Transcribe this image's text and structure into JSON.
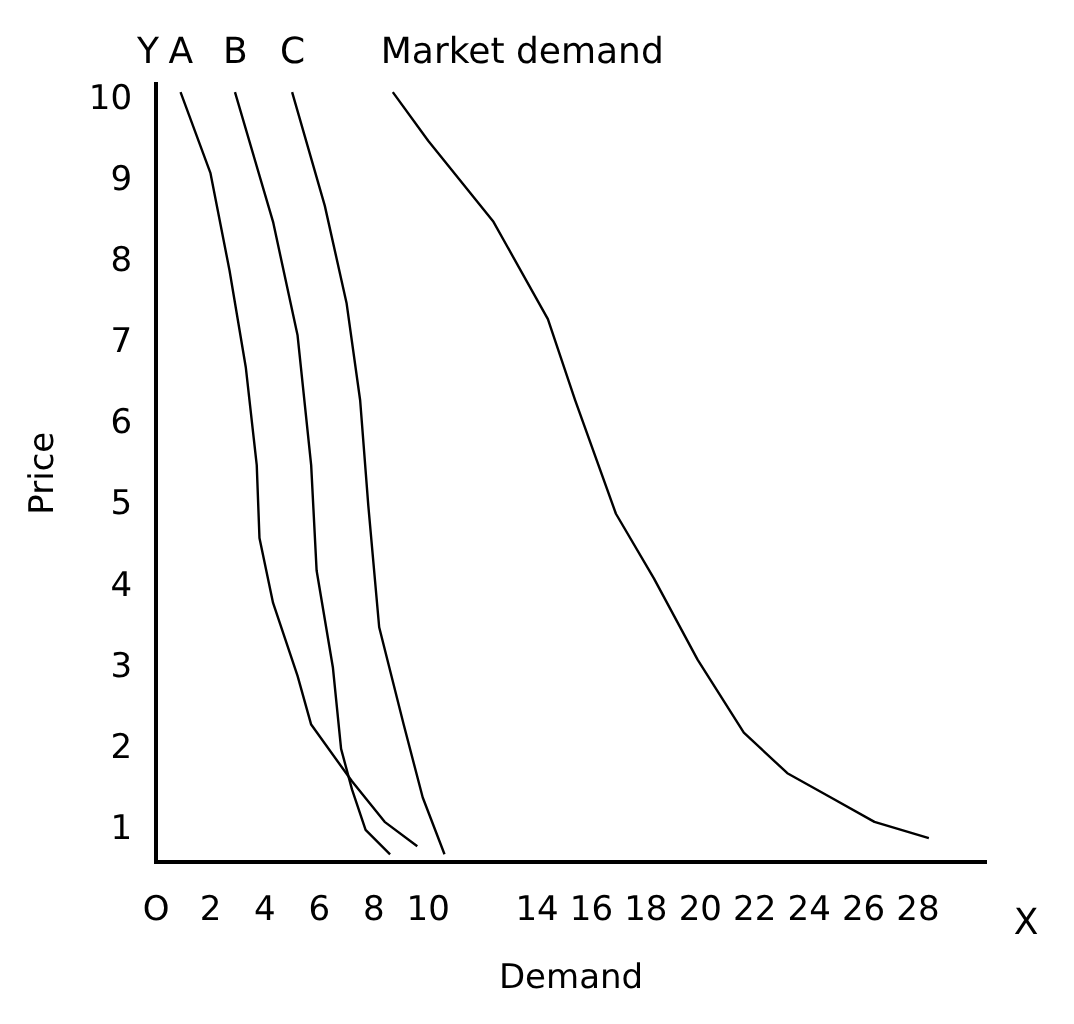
{
  "chart_data": {
    "type": "line",
    "xlabel": "Demand",
    "ylabel": "Price",
    "annotations": [
      "Y",
      "X"
    ],
    "xlim": [
      0,
      30.5
    ],
    "ylim": [
      0.6,
      10.2
    ],
    "xticks": [
      {
        "value": 0,
        "label": "O"
      },
      2,
      4,
      6,
      8,
      10,
      14,
      16,
      18,
      20,
      22,
      24,
      26,
      28
    ],
    "yticks": [
      1,
      2,
      3,
      4,
      5,
      6,
      7,
      8,
      9,
      10
    ],
    "grid": false,
    "legend": false,
    "marker": "none",
    "line_style": "solid",
    "series": [
      {
        "name": "A",
        "color": "#000000",
        "x": [
          0.9,
          2.0,
          2.7,
          3.3,
          3.7,
          3.8,
          4.3,
          5.2,
          5.7,
          7.2,
          8.4,
          9.6
        ],
        "values": [
          10.1,
          9.1,
          7.9,
          6.7,
          5.5,
          4.6,
          3.8,
          2.9,
          2.3,
          1.6,
          1.1,
          0.8
        ]
      },
      {
        "name": "B",
        "color": "#000000",
        "x": [
          2.9,
          4.3,
          5.2,
          5.7,
          5.9,
          6.5,
          6.8,
          7.2,
          7.7,
          8.6
        ],
        "values": [
          10.1,
          8.5,
          7.1,
          5.5,
          4.2,
          3.0,
          2.0,
          1.5,
          1.0,
          0.7
        ]
      },
      {
        "name": "C",
        "color": "#000000",
        "x": [
          5.0,
          6.2,
          7.0,
          7.5,
          7.8,
          8.2,
          9.1,
          9.8,
          10.6
        ],
        "values": [
          10.1,
          8.7,
          7.5,
          6.3,
          5.0,
          3.5,
          2.3,
          1.4,
          0.7
        ]
      },
      {
        "name": "Market demand",
        "color": "#000000",
        "x": [
          8.7,
          10.0,
          12.4,
          14.4,
          15.4,
          16.9,
          18.3,
          19.9,
          21.6,
          23.2,
          24.8,
          26.4,
          28.4
        ],
        "values": [
          10.1,
          9.5,
          8.5,
          7.3,
          6.3,
          4.9,
          4.1,
          3.1,
          2.2,
          1.7,
          1.4,
          1.1,
          0.9
        ]
      }
    ]
  }
}
